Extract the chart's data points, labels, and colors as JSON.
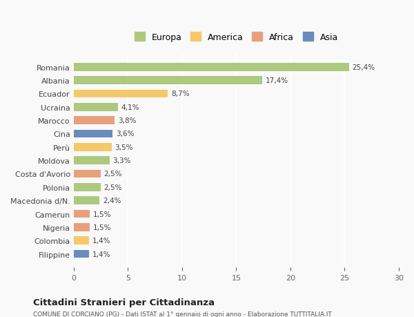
{
  "countries": [
    "Romania",
    "Albania",
    "Ecuador",
    "Ucraina",
    "Marocco",
    "Cina",
    "Perù",
    "Moldova",
    "Costa d'Avorio",
    "Polonia",
    "Macedonia d/N.",
    "Camerun",
    "Nigeria",
    "Colombia",
    "Filippine"
  ],
  "values": [
    25.4,
    17.4,
    8.7,
    4.1,
    3.8,
    3.6,
    3.5,
    3.3,
    2.5,
    2.5,
    2.4,
    1.5,
    1.5,
    1.4,
    1.4
  ],
  "labels": [
    "25,4%",
    "17,4%",
    "8,7%",
    "4,1%",
    "3,8%",
    "3,6%",
    "3,5%",
    "3,3%",
    "2,5%",
    "2,5%",
    "2,4%",
    "1,5%",
    "1,5%",
    "1,4%",
    "1,4%"
  ],
  "colors": [
    "#adc97e",
    "#adc97e",
    "#f5c96a",
    "#adc97e",
    "#e8a07a",
    "#6b8cba",
    "#f5c96a",
    "#adc97e",
    "#e8a07a",
    "#adc97e",
    "#adc97e",
    "#e8a07a",
    "#e8a07a",
    "#f5c96a",
    "#6b8cba"
  ],
  "legend_labels": [
    "Europa",
    "America",
    "Africa",
    "Asia"
  ],
  "legend_colors": [
    "#adc97e",
    "#f5c96a",
    "#e8a07a",
    "#6b8cba"
  ],
  "title": "Cittadini Stranieri per Cittadinanza",
  "subtitle": "COMUNE DI CORCIANO (PG) - Dati ISTAT al 1° gennaio di ogni anno - Elaborazione TUTTITALIA.IT",
  "xlim": [
    0,
    30
  ],
  "xticks": [
    0,
    5,
    10,
    15,
    20,
    25,
    30
  ],
  "background_color": "#f9f9f9",
  "grid_color": "#ffffff",
  "bar_height": 0.6
}
